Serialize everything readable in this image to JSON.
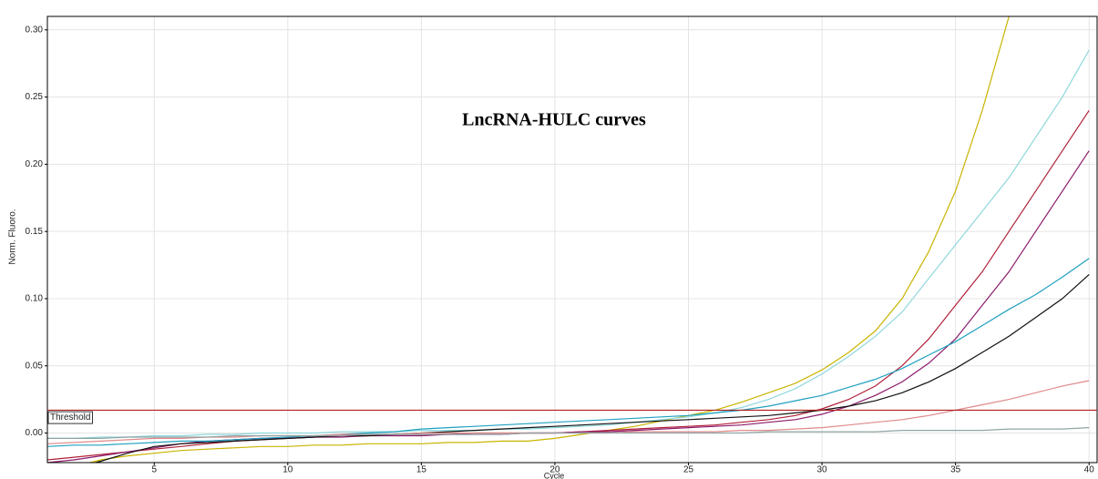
{
  "chart_data": {
    "type": "line",
    "title": "LncRNA-HULC curves",
    "x_label": "Cycle",
    "y_label": "Norm. Fluoro.",
    "xlim": [
      1,
      40.3
    ],
    "ylim": [
      -0.022,
      0.31
    ],
    "xticks": [
      5,
      10,
      15,
      20,
      25,
      30,
      35,
      40
    ],
    "yticks": [
      {
        "value": 0,
        "label": "0.00"
      },
      {
        "value": 0.05,
        "label": "0.05"
      },
      {
        "value": 0.1,
        "label": "0.10"
      },
      {
        "value": 0.15,
        "label": "0.15"
      },
      {
        "value": 0.2,
        "label": "0.20"
      },
      {
        "value": 0.25,
        "label": "0.25"
      },
      {
        "value": 0.3,
        "label": "0.30"
      }
    ],
    "grid": true,
    "threshold": {
      "value": 0.017,
      "label": "Threshold",
      "color": "#b02020"
    },
    "x": [
      1,
      2,
      3,
      4,
      5,
      6,
      7,
      8,
      9,
      10,
      11,
      12,
      13,
      14,
      15,
      16,
      17,
      18,
      19,
      20,
      21,
      22,
      23,
      24,
      25,
      26,
      27,
      28,
      29,
      30,
      31,
      32,
      33,
      34,
      35,
      36,
      37,
      38,
      39,
      40
    ],
    "series": [
      {
        "color": "#c8b400",
        "values": [
          -0.03,
          -0.025,
          -0.02,
          -0.017,
          -0.015,
          -0.013,
          -0.012,
          -0.011,
          -0.01,
          -0.01,
          -0.009,
          -0.009,
          -0.008,
          -0.008,
          -0.008,
          -0.007,
          -0.007,
          -0.006,
          -0.006,
          -0.004,
          -0.001,
          0.002,
          0.005,
          0.009,
          0.013,
          0.017,
          0.023,
          0.03,
          0.037,
          0.047,
          0.06,
          0.076,
          0.1,
          0.135,
          0.18,
          0.24,
          0.31,
          null,
          null,
          null
        ]
      },
      {
        "color": "#8fd8dc",
        "values": [
          -0.004,
          -0.004,
          -0.003,
          -0.003,
          -0.002,
          -0.002,
          -0.001,
          -0.001,
          0,
          0,
          0,
          0.001,
          0.001,
          0.001,
          0.002,
          0.002,
          0.002,
          0.003,
          0.003,
          0.004,
          0.005,
          0.006,
          0.008,
          0.01,
          0.012,
          0.015,
          0.019,
          0.025,
          0.033,
          0.044,
          0.057,
          0.072,
          0.09,
          0.115,
          0.14,
          0.165,
          0.19,
          0.22,
          0.25,
          0.285
        ]
      },
      {
        "color": "#b0203a",
        "values": [
          -0.02,
          -0.018,
          -0.016,
          -0.014,
          -0.012,
          -0.01,
          -0.008,
          -0.006,
          -0.005,
          -0.004,
          -0.003,
          -0.002,
          -0.002,
          -0.001,
          -0.001,
          -0.001,
          0,
          0,
          0,
          0,
          0.001,
          0.002,
          0.003,
          0.004,
          0.005,
          0.006,
          0.008,
          0.01,
          0.013,
          0.018,
          0.025,
          0.035,
          0.05,
          0.07,
          0.095,
          0.12,
          0.15,
          0.18,
          0.21,
          0.24
        ]
      },
      {
        "color": "#8b1a6b",
        "values": [
          -0.022,
          -0.02,
          -0.017,
          -0.014,
          -0.011,
          -0.008,
          -0.006,
          -0.005,
          -0.004,
          -0.004,
          -0.003,
          -0.003,
          -0.002,
          -0.002,
          -0.002,
          -0.001,
          -0.001,
          -0.001,
          0,
          0,
          0.001,
          0.001,
          0.002,
          0.003,
          0.004,
          0.005,
          0.006,
          0.008,
          0.01,
          0.014,
          0.02,
          0.028,
          0.038,
          0.052,
          0.07,
          0.095,
          0.12,
          0.15,
          0.18,
          0.21
        ]
      },
      {
        "color": "#20a0c0",
        "values": [
          -0.01,
          -0.009,
          -0.009,
          -0.008,
          -0.007,
          -0.006,
          -0.006,
          -0.005,
          -0.004,
          -0.003,
          -0.002,
          -0.001,
          0,
          0.001,
          0.003,
          0.004,
          0.005,
          0.006,
          0.007,
          0.008,
          0.009,
          0.01,
          0.011,
          0.012,
          0.013,
          0.015,
          0.017,
          0.02,
          0.024,
          0.028,
          0.034,
          0.04,
          0.048,
          0.058,
          0.068,
          0.08,
          0.092,
          0.103,
          0.116,
          0.13
        ]
      },
      {
        "color": "#111111",
        "values": [
          -0.03,
          -0.026,
          -0.021,
          -0.015,
          -0.01,
          -0.008,
          -0.007,
          -0.006,
          -0.005,
          -0.004,
          -0.003,
          -0.002,
          -0.002,
          -0.001,
          0,
          0.001,
          0.002,
          0.003,
          0.004,
          0.005,
          0.006,
          0.007,
          0.008,
          0.009,
          0.01,
          0.011,
          0.012,
          0.013,
          0.015,
          0.017,
          0.02,
          0.024,
          0.03,
          0.038,
          0.048,
          0.06,
          0.072,
          0.086,
          0.1,
          0.118
        ]
      },
      {
        "color": "#e08a8a",
        "values": [
          -0.008,
          -0.007,
          -0.006,
          -0.005,
          -0.004,
          -0.004,
          -0.003,
          -0.003,
          -0.002,
          -0.002,
          -0.002,
          -0.001,
          -0.001,
          -0.001,
          0,
          0,
          0,
          0,
          0,
          0,
          0,
          0,
          0.001,
          0.001,
          0.001,
          0.001,
          0.002,
          0.002,
          0.003,
          0.004,
          0.006,
          0.008,
          0.01,
          0.013,
          0.017,
          0.021,
          0.025,
          0.03,
          0.035,
          0.039
        ]
      },
      {
        "color": "#90a4a4",
        "values": [
          -0.004,
          -0.004,
          -0.004,
          -0.003,
          -0.003,
          -0.003,
          -0.003,
          -0.002,
          -0.002,
          -0.002,
          -0.002,
          -0.002,
          -0.001,
          -0.001,
          -0.001,
          -0.001,
          -0.001,
          -0.001,
          0,
          0,
          0,
          0,
          0,
          0,
          0,
          0,
          0,
          0.001,
          0.001,
          0.001,
          0.001,
          0.001,
          0.002,
          0.002,
          0.002,
          0.002,
          0.003,
          0.003,
          0.003,
          0.004
        ]
      }
    ]
  }
}
